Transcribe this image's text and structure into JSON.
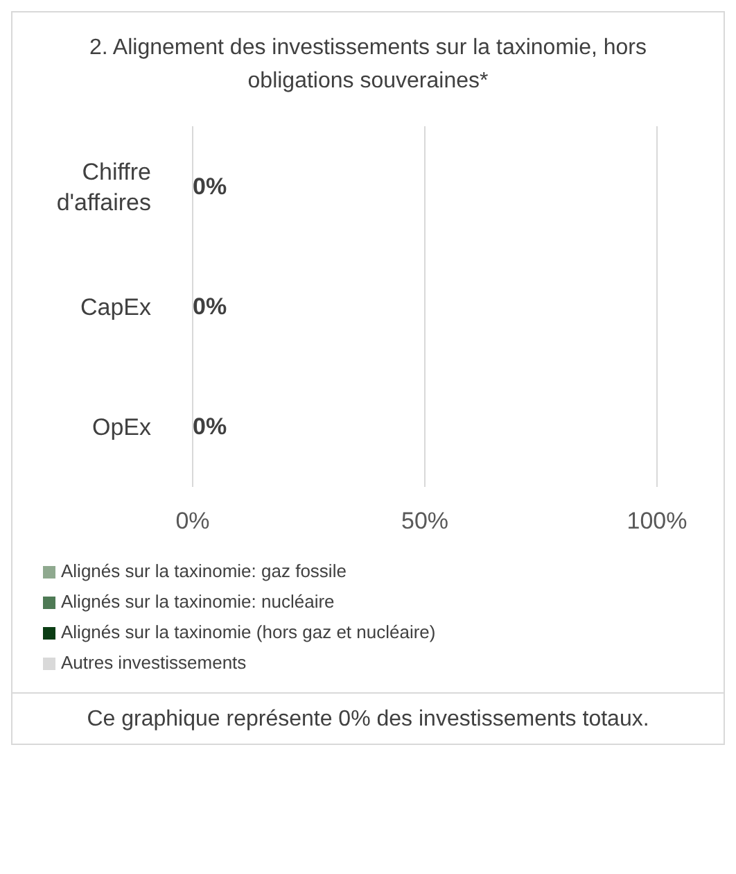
{
  "chart_data": {
    "type": "bar",
    "orientation": "horizontal",
    "title": "2. Alignement des investissements sur la taxinomie, hors obligations souveraines*",
    "categories": [
      "Chiffre d'affaires",
      "CapEx",
      "OpEx"
    ],
    "series": [
      {
        "name": "Alignés sur la taxinomie: gaz fossile",
        "color": "#8fa98f",
        "values": [
          0,
          0,
          0
        ],
        "value_labels": [
          "0%",
          "0%",
          "0%"
        ]
      },
      {
        "name": "Alignés sur la taxinomie: nucléaire",
        "color": "#4e7a55",
        "values": [
          0,
          0,
          0
        ]
      },
      {
        "name": "Alignés sur la taxinomie (hors gaz et nucléaire)",
        "color": "#0b3d14",
        "values": [
          0,
          0,
          0
        ]
      },
      {
        "name": "Autres investissements",
        "color": "#d9d9d9",
        "values": [
          0,
          0,
          0
        ]
      }
    ],
    "xlim": [
      0,
      100
    ],
    "xticks": [
      {
        "value": 0,
        "label": "0%"
      },
      {
        "value": 50,
        "label": "50%"
      },
      {
        "value": 100,
        "label": "100%"
      }
    ],
    "grid": "x",
    "legend": "bottom",
    "annotations": [
      "Ce graphique représente 0% des investissements totaux."
    ]
  }
}
